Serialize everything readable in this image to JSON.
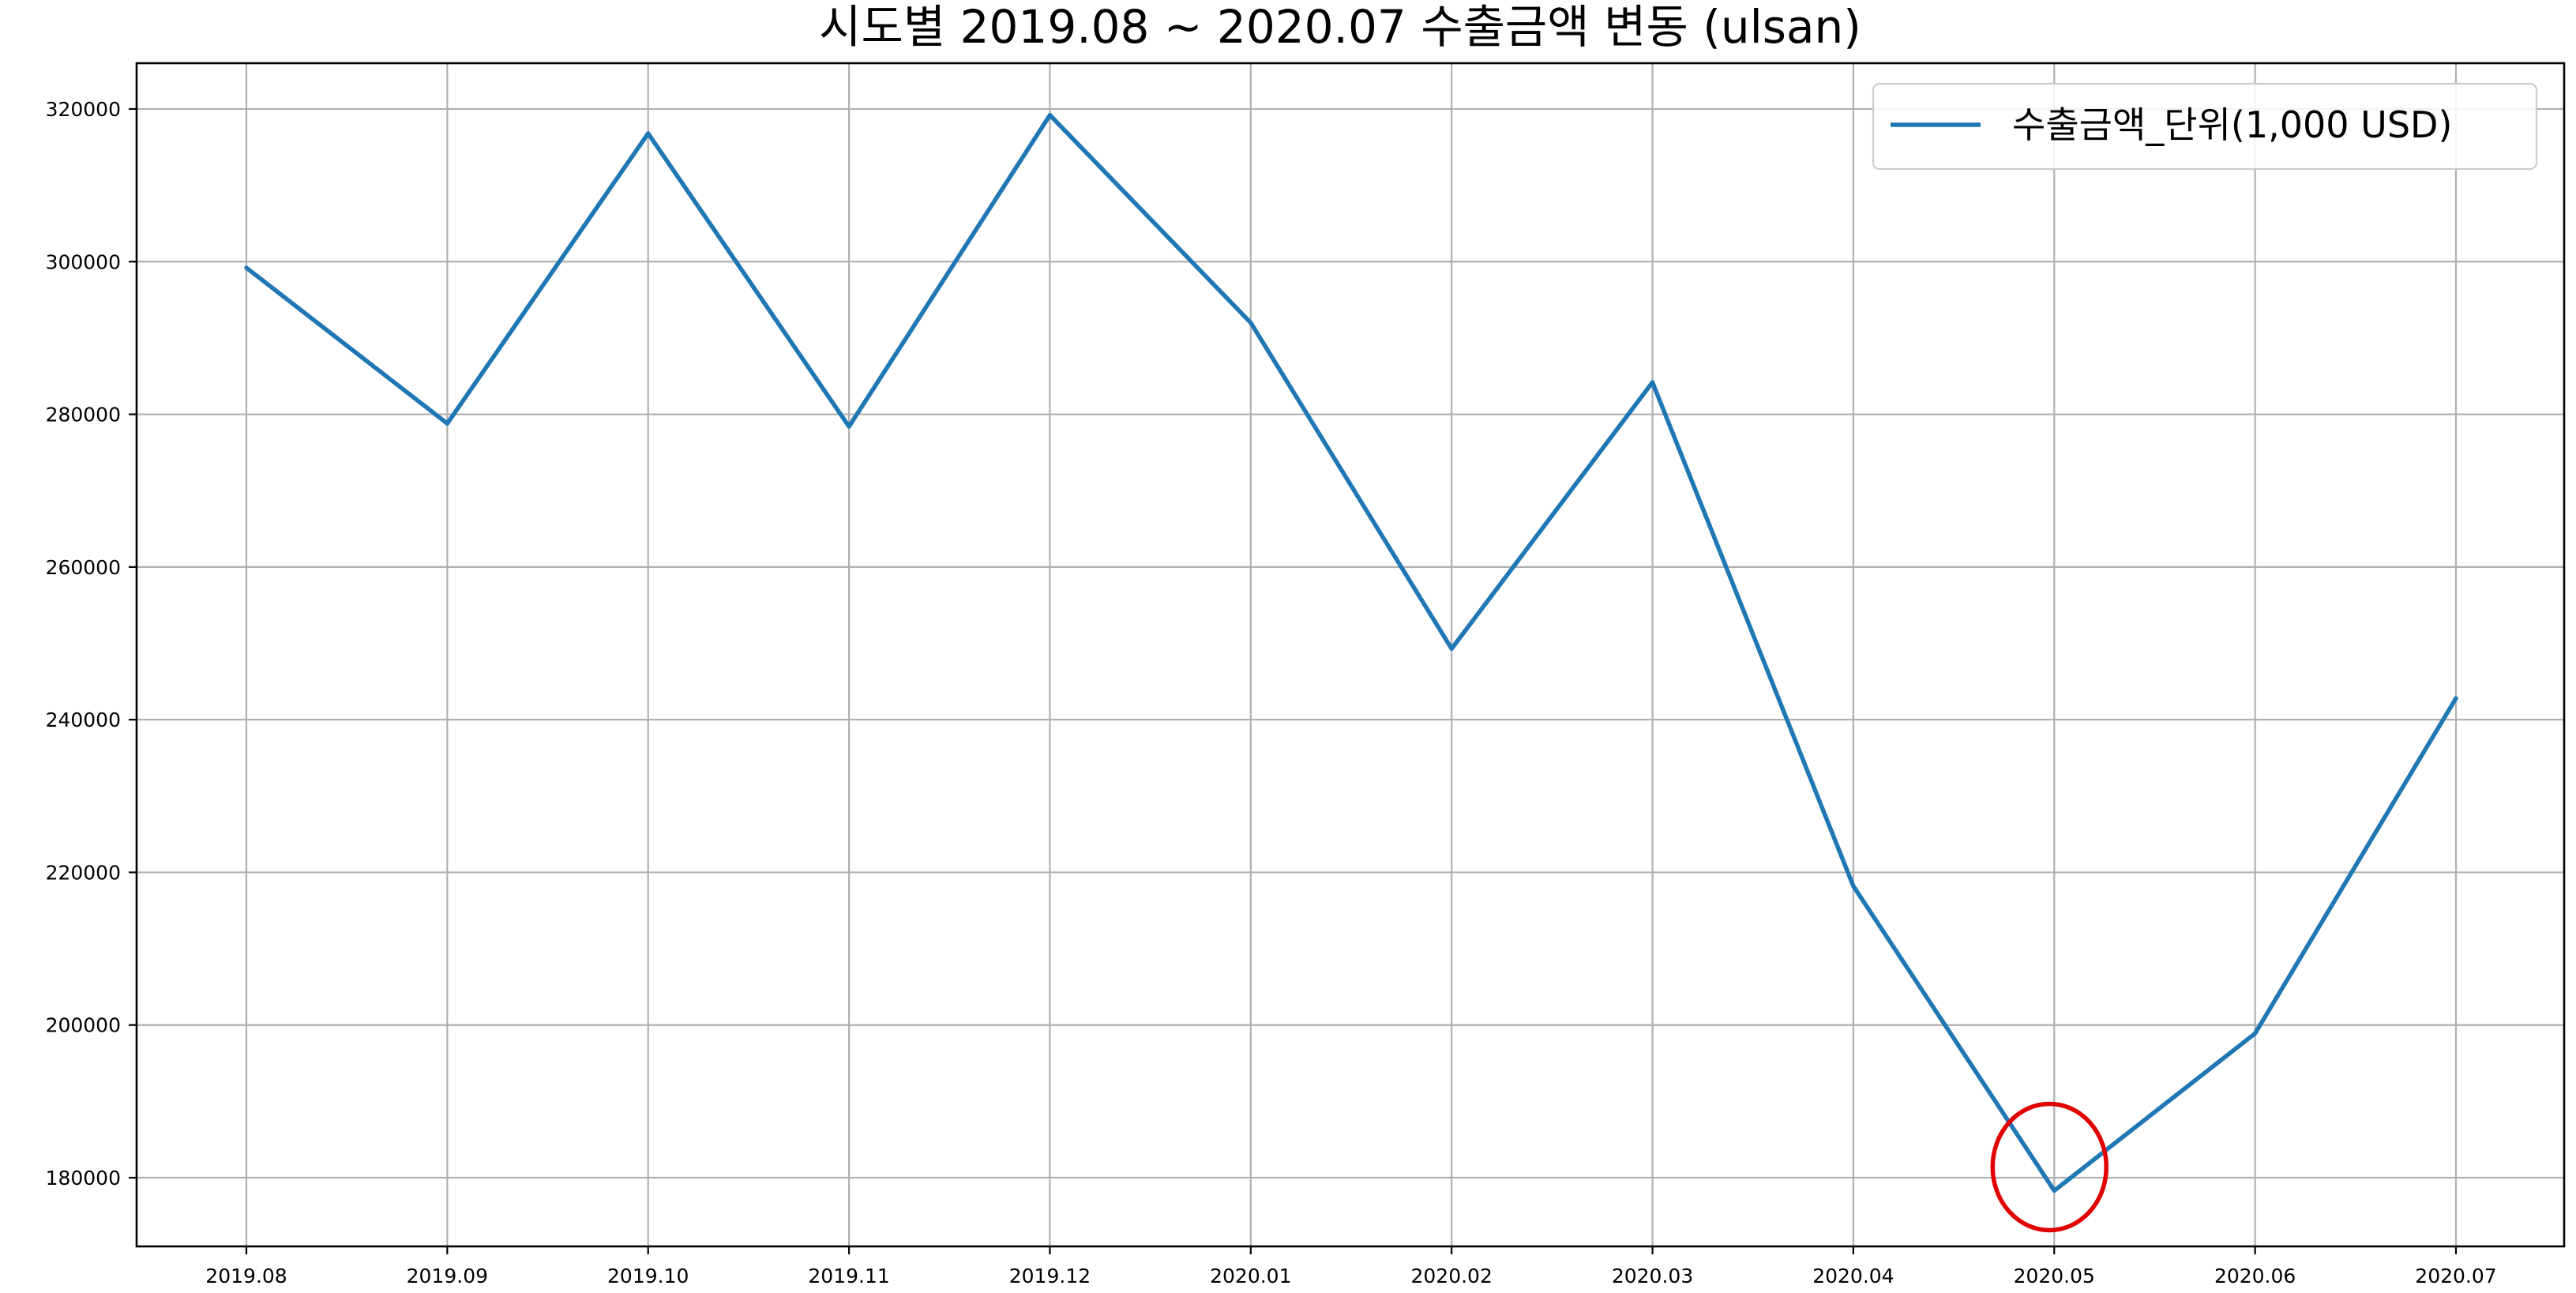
{
  "chart_data": {
    "type": "line",
    "title": "시도별 2019.08 ~ 2020.07 수출금액 변동 (ulsan)",
    "xlabel": "",
    "ylabel": "",
    "categories": [
      "2019.08",
      "2019.09",
      "2019.10",
      "2019.11",
      "2019.12",
      "2020.01",
      "2020.02",
      "2020.03",
      "2020.04",
      "2020.05",
      "2020.06",
      "2020.07"
    ],
    "series": [
      {
        "name": "수출금액_단위(1,000 USD)",
        "color": "#1f77b4",
        "values": [
          299200,
          278800,
          316800,
          278400,
          319200,
          292000,
          249300,
          284200,
          218200,
          178300,
          198900,
          242800
        ]
      }
    ],
    "ylim": [
      171000,
      326000
    ],
    "yticks": [
      180000,
      200000,
      220000,
      240000,
      260000,
      280000,
      300000,
      320000
    ],
    "ytick_labels": [
      "180000",
      "200000",
      "220000",
      "240000",
      "260000",
      "280000",
      "300000",
      "320000"
    ],
    "grid": true,
    "legend_position": "top-right",
    "highlight": {
      "category": "2020.05",
      "value": 178300,
      "color": "#e00000",
      "shape": "circle"
    }
  }
}
